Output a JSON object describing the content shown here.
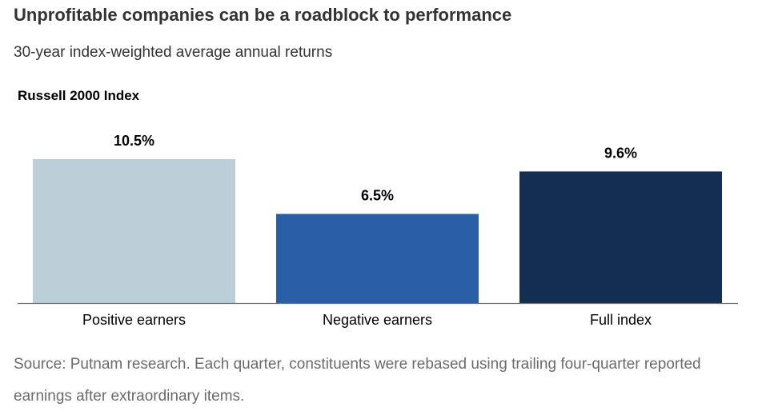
{
  "header": {
    "title": "Unprofitable companies can be a roadblock to performance",
    "subtitle": "30-year index-weighted average annual returns"
  },
  "chart_data": {
    "type": "bar",
    "title": "Russell 2000 Index",
    "categories": [
      "Positive earners",
      "Negative earners",
      "Full index"
    ],
    "values": [
      10.5,
      6.5,
      9.6
    ],
    "value_labels": [
      "10.5%",
      "6.5%",
      "9.6%"
    ],
    "colors": [
      "#bccfd9",
      "#2a5fa8",
      "#142d52"
    ],
    "ylim": [
      0,
      10.5
    ],
    "grid": false,
    "legend": "none",
    "xlabel": "",
    "ylabel": ""
  },
  "footer": {
    "source": "Source: Putnam research. Each quarter, constituents were rebased using trailing four-quarter reported earnings after extraordinary items."
  }
}
